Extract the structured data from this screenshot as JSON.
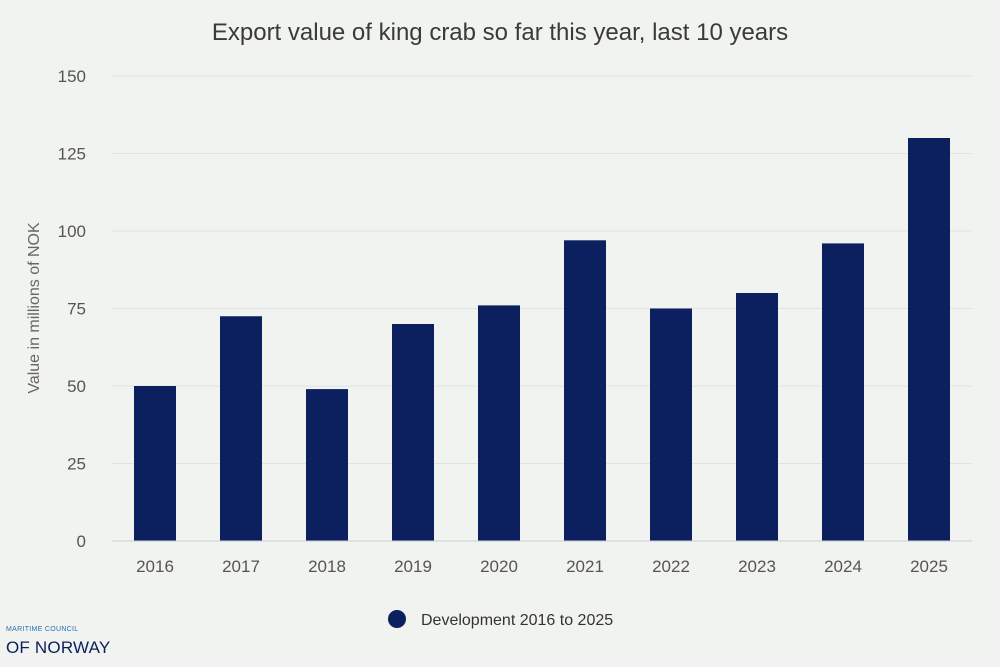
{
  "chart_data": {
    "type": "bar",
    "title": "Export value of king crab so far this year, last 10 years",
    "xlabel": "",
    "ylabel": "Value in millions of NOK",
    "categories": [
      "2016",
      "2017",
      "2018",
      "2019",
      "2020",
      "2021",
      "2022",
      "2023",
      "2024",
      "2025"
    ],
    "series": [
      {
        "name": "Development 2016 to 2025",
        "values": [
          50,
          72.5,
          49,
          70,
          76,
          97,
          75,
          80,
          96,
          130
        ],
        "color": "#0c1f5f"
      }
    ],
    "ylim": [
      0,
      150
    ],
    "yticks": [
      0,
      25,
      50,
      75,
      100,
      125,
      150
    ],
    "grid": true,
    "legend": "bottom"
  },
  "logo": {
    "top_line": "MARITIME COUNCIL",
    "main_line": "OF NORWAY"
  }
}
